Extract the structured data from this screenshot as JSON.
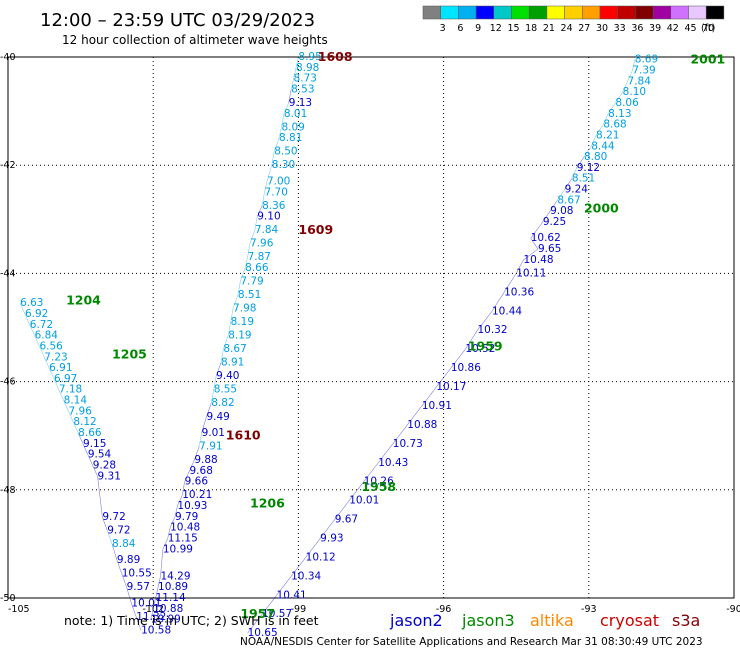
{
  "title": "12:00 – 23:59 UTC 03/29/2023",
  "subtitle": "12 hour collection of altimeter wave heights",
  "note": "note:  1) Time is in UTC; 2) SWH is in feet",
  "credit": "NOAA/NESDIS Center for Satellite Applications and Research    Mar 31 08:30:49 UTC 2023",
  "legend": {
    "labels": [
      "3",
      "6",
      "9",
      "12",
      "15",
      "18",
      "21",
      "24",
      "27",
      "30",
      "33",
      "36",
      "39",
      "42",
      "45",
      "70",
      "(ft)"
    ],
    "colors": [
      "#808080",
      "#00e5ff",
      "#00b0f0",
      "#0000ff",
      "#00c8c8",
      "#00e000",
      "#00a000",
      "#ffff00",
      "#ffd000",
      "#ffa000",
      "#ff0000",
      "#c00000",
      "#800000",
      "#a000a0",
      "#d070ff",
      "#e8c8ff",
      "#000000"
    ]
  },
  "satellites": [
    {
      "name": "jason2",
      "color": "#0000cc"
    },
    {
      "name": "jason3",
      "color": "#008800"
    },
    {
      "name": "altika",
      "color": "#ff8800"
    },
    {
      "name": "cryosat",
      "color": "#cc0000"
    },
    {
      "name": "s3a",
      "color": "#880000"
    }
  ],
  "map": {
    "lon_ticks": [
      "-105",
      "-102",
      "-99",
      "-96",
      "-93",
      "-90"
    ],
    "lat_ticks": [
      "-40",
      "-42",
      "-44",
      "-46",
      "-48",
      "-50"
    ],
    "lon_range": [
      -105,
      -90
    ],
    "lat_range": [
      -50,
      -40
    ]
  },
  "chart_data": {
    "type": "scatter",
    "tracks": [
      {
        "name": "track-1608",
        "times": [
          {
            "label": "1608",
            "lon": -98.6,
            "lat": -40.0,
            "color": "#800000"
          },
          {
            "label": "1609",
            "lon": -99.0,
            "lat": -43.2,
            "color": "#800000"
          },
          {
            "label": "1610",
            "lon": -100.5,
            "lat": -47.0,
            "color": "#800000"
          }
        ],
        "values": [
          {
            "v": "8.95",
            "lon": -99.0,
            "lat": -40.0,
            "color": "#00a0e0"
          },
          {
            "v": "8.98",
            "lon": -99.05,
            "lat": -40.2,
            "color": "#00a0e0"
          },
          {
            "v": "8.73",
            "lon": -99.1,
            "lat": -40.4,
            "color": "#00a0e0"
          },
          {
            "v": "8.53",
            "lon": -99.15,
            "lat": -40.6,
            "color": "#00a0e0"
          },
          {
            "v": "9.13",
            "lon": -99.2,
            "lat": -40.85,
            "color": "#0000cc"
          },
          {
            "v": "8.01",
            "lon": -99.3,
            "lat": -41.05,
            "color": "#00a0e0"
          },
          {
            "v": "8.09",
            "lon": -99.35,
            "lat": -41.3,
            "color": "#00a0e0"
          },
          {
            "v": "8.81",
            "lon": -99.4,
            "lat": -41.5,
            "color": "#00a0e0"
          },
          {
            "v": "8.50",
            "lon": -99.5,
            "lat": -41.75,
            "color": "#00a0e0"
          },
          {
            "v": "8.30",
            "lon": -99.55,
            "lat": -42.0,
            "color": "#00a0e0"
          },
          {
            "v": "7.00",
            "lon": -99.65,
            "lat": -42.3,
            "color": "#00a0e0"
          },
          {
            "v": "7.70",
            "lon": -99.7,
            "lat": -42.5,
            "color": "#00a0e0"
          },
          {
            "v": "8.36",
            "lon": -99.75,
            "lat": -42.75,
            "color": "#00a0e0"
          },
          {
            "v": "9.10",
            "lon": -99.85,
            "lat": -42.95,
            "color": "#0000cc"
          },
          {
            "v": "7.84",
            "lon": -99.9,
            "lat": -43.2,
            "color": "#00a0e0"
          },
          {
            "v": "7.96",
            "lon": -100.0,
            "lat": -43.45,
            "color": "#00a0e0"
          },
          {
            "v": "7.87",
            "lon": -100.05,
            "lat": -43.7,
            "color": "#00a0e0"
          },
          {
            "v": "8.66",
            "lon": -100.1,
            "lat": -43.9,
            "color": "#00a0e0"
          },
          {
            "v": "7.79",
            "lon": -100.2,
            "lat": -44.15,
            "color": "#00a0e0"
          },
          {
            "v": "8.51",
            "lon": -100.25,
            "lat": -44.4,
            "color": "#00a0e0"
          },
          {
            "v": "7.98",
            "lon": -100.35,
            "lat": -44.65,
            "color": "#00a0e0"
          },
          {
            "v": "8.19",
            "lon": -100.4,
            "lat": -44.9,
            "color": "#00a0e0"
          },
          {
            "v": "8.19",
            "lon": -100.45,
            "lat": -45.15,
            "color": "#00a0e0"
          },
          {
            "v": "8.67",
            "lon": -100.55,
            "lat": -45.4,
            "color": "#00a0e0"
          },
          {
            "v": "8.91",
            "lon": -100.6,
            "lat": -45.65,
            "color": "#00a0e0"
          },
          {
            "v": "9.40",
            "lon": -100.7,
            "lat": -45.9,
            "color": "#0000cc"
          },
          {
            "v": "8.55",
            "lon": -100.75,
            "lat": -46.15,
            "color": "#00a0e0"
          },
          {
            "v": "8.82",
            "lon": -100.8,
            "lat": -46.4,
            "color": "#00a0e0"
          },
          {
            "v": "9.49",
            "lon": -100.9,
            "lat": -46.65,
            "color": "#0000cc"
          },
          {
            "v": "9.01",
            "lon": -101.0,
            "lat": -46.95,
            "color": "#0000cc"
          },
          {
            "v": "7.91",
            "lon": -101.05,
            "lat": -47.2,
            "color": "#00a0e0"
          },
          {
            "v": "9.88",
            "lon": -101.15,
            "lat": -47.45,
            "color": "#0000cc"
          },
          {
            "v": "9.68",
            "lon": -101.25,
            "lat": -47.65,
            "color": "#0000cc"
          },
          {
            "v": "9.66",
            "lon": -101.35,
            "lat": -47.85,
            "color": "#0000cc"
          },
          {
            "v": "10.21",
            "lon": -101.4,
            "lat": -48.1,
            "color": "#0000cc"
          },
          {
            "v": "10.93",
            "lon": -101.5,
            "lat": -48.3,
            "color": "#0000cc"
          },
          {
            "v": "9.79",
            "lon": -101.55,
            "lat": -48.5,
            "color": "#0000cc"
          },
          {
            "v": "10.48",
            "lon": -101.65,
            "lat": -48.7,
            "color": "#0000cc"
          },
          {
            "v": "11.15",
            "lon": -101.7,
            "lat": -48.9,
            "color": "#0000cc"
          },
          {
            "v": "10.99",
            "lon": -101.8,
            "lat": -49.1,
            "color": "#0000cc"
          },
          {
            "v": "14.29",
            "lon": -101.85,
            "lat": -49.6,
            "color": "#0000cc"
          },
          {
            "v": "10.89",
            "lon": -101.9,
            "lat": -49.8,
            "color": "#0000cc"
          },
          {
            "v": "11.14",
            "lon": -101.95,
            "lat": -50.0,
            "color": "#0000cc"
          },
          {
            "v": "10.88",
            "lon": -102.0,
            "lat": -50.2,
            "color": "#0000cc"
          },
          {
            "v": "10.99",
            "lon": -102.05,
            "lat": -50.4,
            "color": "#0000cc"
          }
        ]
      },
      {
        "name": "track-1204",
        "times": [
          {
            "label": "1204",
            "lon": -103.8,
            "lat": -44.5,
            "color": "#008800"
          },
          {
            "label": "1205",
            "lon": -102.85,
            "lat": -45.5,
            "color": "#008800"
          },
          {
            "label": "1206",
            "lon": -100.0,
            "lat": -48.25,
            "color": "#008800"
          }
        ],
        "values": [
          {
            "v": "6.63",
            "lon": -104.75,
            "lat": -44.55,
            "color": "#00a0e0"
          },
          {
            "v": "6.92",
            "lon": -104.65,
            "lat": -44.75,
            "color": "#00a0e0"
          },
          {
            "v": "6.72",
            "lon": -104.55,
            "lat": -44.95,
            "color": "#00a0e0"
          },
          {
            "v": "6.84",
            "lon": -104.45,
            "lat": -45.15,
            "color": "#00a0e0"
          },
          {
            "v": "6.56",
            "lon": -104.35,
            "lat": -45.35,
            "color": "#00a0e0"
          },
          {
            "v": "7.23",
            "lon": -104.25,
            "lat": -45.55,
            "color": "#00a0e0"
          },
          {
            "v": "6.91",
            "lon": -104.15,
            "lat": -45.75,
            "color": "#00a0e0"
          },
          {
            "v": "6.97",
            "lon": -104.05,
            "lat": -45.95,
            "color": "#00a0e0"
          },
          {
            "v": "7.18",
            "lon": -103.95,
            "lat": -46.15,
            "color": "#00a0e0"
          },
          {
            "v": "8.14",
            "lon": -103.85,
            "lat": -46.35,
            "color": "#00a0e0"
          },
          {
            "v": "7.96",
            "lon": -103.75,
            "lat": -46.55,
            "color": "#00a0e0"
          },
          {
            "v": "8.12",
            "lon": -103.65,
            "lat": -46.75,
            "color": "#00a0e0"
          },
          {
            "v": "8.66",
            "lon": -103.55,
            "lat": -46.95,
            "color": "#00a0e0"
          },
          {
            "v": "9.15",
            "lon": -103.45,
            "lat": -47.15,
            "color": "#0000cc"
          },
          {
            "v": "9.54",
            "lon": -103.35,
            "lat": -47.35,
            "color": "#0000cc"
          },
          {
            "v": "9.28",
            "lon": -103.25,
            "lat": -47.55,
            "color": "#0000cc"
          },
          {
            "v": "9.31",
            "lon": -103.15,
            "lat": -47.75,
            "color": "#0000cc"
          },
          {
            "v": "9.72",
            "lon": -103.05,
            "lat": -48.5,
            "color": "#0000cc"
          },
          {
            "v": "9.72",
            "lon": -102.95,
            "lat": -48.75,
            "color": "#0000cc"
          },
          {
            "v": "8.84",
            "lon": -102.85,
            "lat": -49.0,
            "color": "#00a0e0"
          },
          {
            "v": "9.89",
            "lon": -102.75,
            "lat": -49.3,
            "color": "#0000cc"
          },
          {
            "v": "10.55",
            "lon": -102.65,
            "lat": -49.55,
            "color": "#0000cc"
          },
          {
            "v": "9.57",
            "lon": -102.55,
            "lat": -49.8,
            "color": "#0000cc"
          },
          {
            "v": "10.01",
            "lon": -102.45,
            "lat": -50.1,
            "color": "#0000cc"
          },
          {
            "v": "11.32",
            "lon": -102.35,
            "lat": -50.35,
            "color": "#0000cc"
          },
          {
            "v": "10.58",
            "lon": -102.25,
            "lat": -50.6,
            "color": "#0000cc"
          }
        ]
      },
      {
        "name": "track-1957",
        "times": [
          {
            "label": "1957",
            "lon": -100.2,
            "lat": -50.3,
            "color": "#008800"
          },
          {
            "label": "1958",
            "lon": -97.7,
            "lat": -47.95,
            "color": "#008800"
          },
          {
            "label": "1959",
            "lon": -95.5,
            "lat": -45.35,
            "color": "#008800"
          },
          {
            "label": "2000",
            "lon": -93.1,
            "lat": -42.8,
            "color": "#008800"
          },
          {
            "label": "2001",
            "lon": -90.9,
            "lat": -40.05,
            "color": "#008800"
          }
        ],
        "values": [
          {
            "v": "8.69",
            "lon": -92.05,
            "lat": -40.05,
            "color": "#00a0e0"
          },
          {
            "v": "7.39",
            "lon": -92.1,
            "lat": -40.25,
            "color": "#00a0e0"
          },
          {
            "v": "7.84",
            "lon": -92.2,
            "lat": -40.45,
            "color": "#00a0e0"
          },
          {
            "v": "8.10",
            "lon": -92.3,
            "lat": -40.65,
            "color": "#00a0e0"
          },
          {
            "v": "8.06",
            "lon": -92.45,
            "lat": -40.85,
            "color": "#00a0e0"
          },
          {
            "v": "8.13",
            "lon": -92.6,
            "lat": -41.05,
            "color": "#00a0e0"
          },
          {
            "v": "8.68",
            "lon": -92.7,
            "lat": -41.25,
            "color": "#00a0e0"
          },
          {
            "v": "8.21",
            "lon": -92.85,
            "lat": -41.45,
            "color": "#00a0e0"
          },
          {
            "v": "8.44",
            "lon": -92.95,
            "lat": -41.65,
            "color": "#00a0e0"
          },
          {
            "v": "8.80",
            "lon": -93.1,
            "lat": -41.85,
            "color": "#00a0e0"
          },
          {
            "v": "9.12",
            "lon": -93.25,
            "lat": -42.05,
            "color": "#0000cc"
          },
          {
            "v": "8.51",
            "lon": -93.35,
            "lat": -42.25,
            "color": "#00a0e0"
          },
          {
            "v": "9.24",
            "lon": -93.5,
            "lat": -42.45,
            "color": "#0000cc"
          },
          {
            "v": "8.67",
            "lon": -93.65,
            "lat": -42.65,
            "color": "#00a0e0"
          },
          {
            "v": "9.08",
            "lon": -93.8,
            "lat": -42.85,
            "color": "#0000cc"
          },
          {
            "v": "9.25",
            "lon": -93.95,
            "lat": -43.05,
            "color": "#0000cc"
          },
          {
            "v": "10.62",
            "lon": -94.2,
            "lat": -43.35,
            "color": "#0000cc"
          },
          {
            "v": "9.65",
            "lon": -94.05,
            "lat": -43.55,
            "color": "#0000cc"
          },
          {
            "v": "10.48",
            "lon": -94.35,
            "lat": -43.75,
            "color": "#0000cc"
          },
          {
            "v": "10.11",
            "lon": -94.5,
            "lat": -44.0,
            "color": "#0000cc"
          },
          {
            "v": "10.36",
            "lon": -94.75,
            "lat": -44.35,
            "color": "#0000cc"
          },
          {
            "v": "10.44",
            "lon": -95.0,
            "lat": -44.7,
            "color": "#0000cc"
          },
          {
            "v": "10.32",
            "lon": -95.3,
            "lat": -45.05,
            "color": "#0000cc"
          },
          {
            "v": "10.52",
            "lon": -95.55,
            "lat": -45.4,
            "color": "#0000cc"
          },
          {
            "v": "10.86",
            "lon": -95.85,
            "lat": -45.75,
            "color": "#0000cc"
          },
          {
            "v": "10.17",
            "lon": -96.15,
            "lat": -46.1,
            "color": "#0000cc"
          },
          {
            "v": "10.91",
            "lon": -96.45,
            "lat": -46.45,
            "color": "#0000cc"
          },
          {
            "v": "10.88",
            "lon": -96.75,
            "lat": -46.8,
            "color": "#0000cc"
          },
          {
            "v": "10.73",
            "lon": -97.05,
            "lat": -47.15,
            "color": "#0000cc"
          },
          {
            "v": "10.43",
            "lon": -97.35,
            "lat": -47.5,
            "color": "#0000cc"
          },
          {
            "v": "10.26",
            "lon": -97.65,
            "lat": -47.85,
            "color": "#0000cc"
          },
          {
            "v": "10.01",
            "lon": -97.95,
            "lat": -48.2,
            "color": "#0000cc"
          },
          {
            "v": "9.67",
            "lon": -98.25,
            "lat": -48.55,
            "color": "#0000cc"
          },
          {
            "v": "9.93",
            "lon": -98.55,
            "lat": -48.9,
            "color": "#0000cc"
          },
          {
            "v": "10.12",
            "lon": -98.85,
            "lat": -49.25,
            "color": "#0000cc"
          },
          {
            "v": "10.34",
            "lon": -99.15,
            "lat": -49.6,
            "color": "#0000cc"
          },
          {
            "v": "10.41",
            "lon": -99.45,
            "lat": -49.95,
            "color": "#0000cc"
          },
          {
            "v": "10.57",
            "lon": -99.75,
            "lat": -50.3,
            "color": "#0000cc"
          },
          {
            "v": "10.65",
            "lon": -100.05,
            "lat": -50.65,
            "color": "#0000cc"
          }
        ]
      }
    ]
  }
}
